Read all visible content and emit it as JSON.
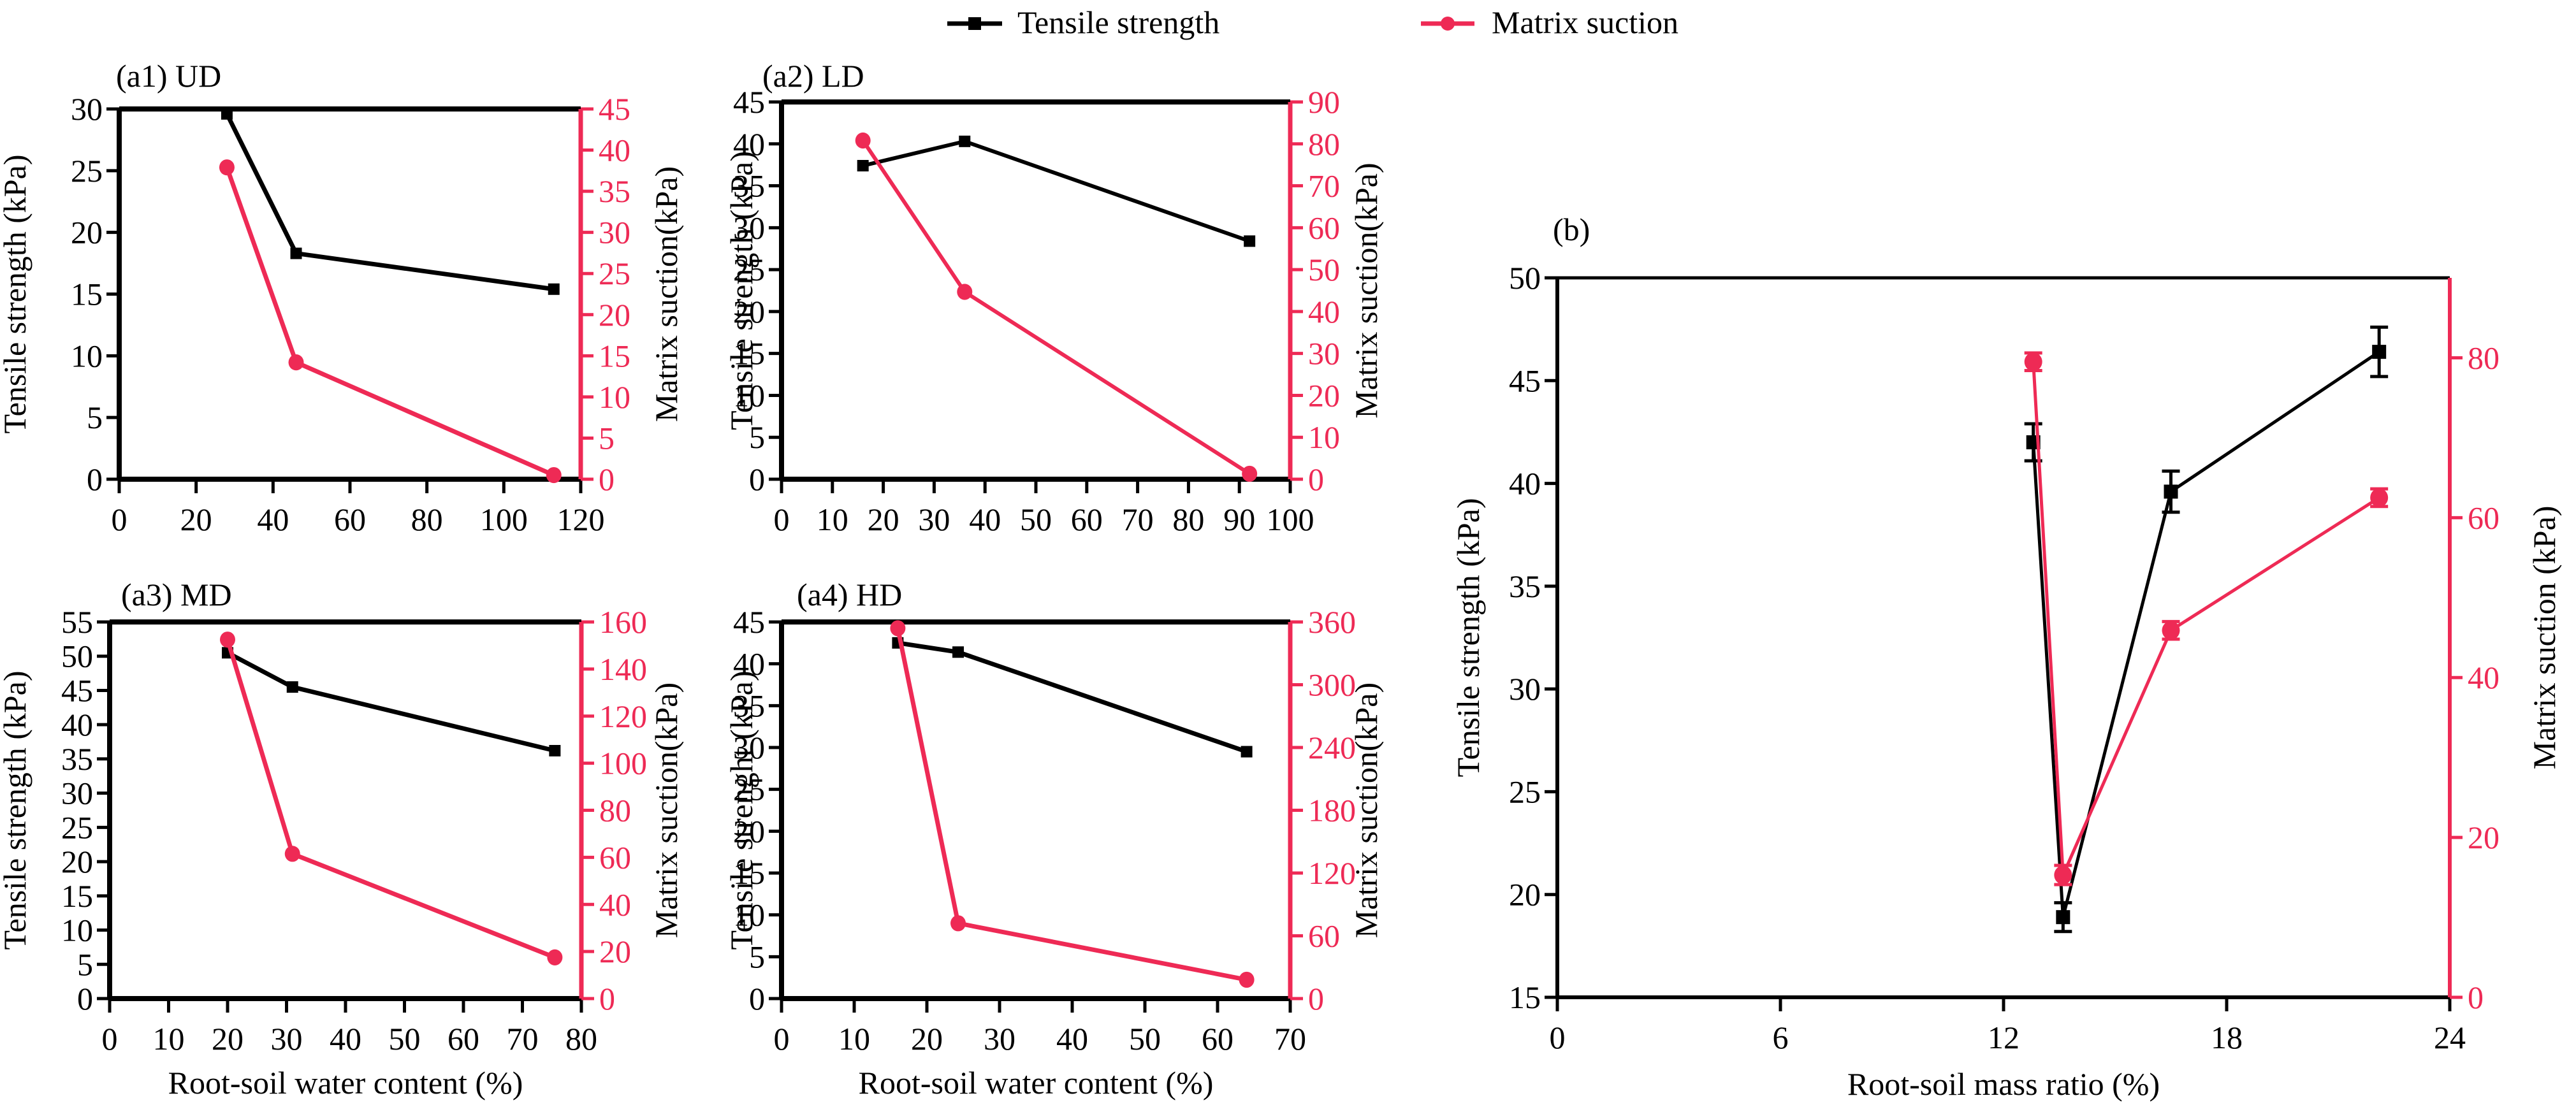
{
  "legend": {
    "position": "top-center",
    "items": [
      {
        "label": "Tensile strength",
        "color": "#000000",
        "marker": "square"
      },
      {
        "label": "Matrix suction",
        "color": "#ee2a55",
        "marker": "circle"
      }
    ]
  },
  "colors": {
    "tensile": "#000000",
    "suction": "#ee2a55"
  },
  "chart_data": [
    {
      "id": "a1",
      "type": "line",
      "title": "(a1) UD",
      "xlabel": "",
      "ylabel": "Tensile strength (kPa)",
      "y2label": "Matrix suction(kPa)",
      "xlim": [
        0,
        120
      ],
      "xticks": [
        0,
        20,
        40,
        60,
        80,
        100,
        120
      ],
      "ylim": [
        0,
        30
      ],
      "yticks": [
        0,
        5,
        10,
        15,
        20,
        25,
        30
      ],
      "y2lim": [
        0,
        45
      ],
      "y2ticks": [
        0,
        5,
        10,
        15,
        20,
        25,
        30,
        35,
        40,
        45
      ],
      "grid": false,
      "series": [
        {
          "name": "Tensile strength",
          "axis": "left",
          "x": [
            28,
            46,
            113
          ],
          "y": [
            29.6,
            18.3,
            15.4
          ]
        },
        {
          "name": "Matrix suction",
          "axis": "right",
          "x": [
            28,
            46,
            113
          ],
          "y": [
            37.9,
            14.2,
            0.5
          ]
        }
      ]
    },
    {
      "id": "a2",
      "type": "line",
      "title": "(a2) LD",
      "xlabel": "",
      "ylabel": "Tensile strength (kPa)",
      "y2label": "Matrix suction(kPa)",
      "xlim": [
        0,
        100
      ],
      "xticks": [
        0,
        10,
        20,
        30,
        40,
        50,
        60,
        70,
        80,
        90,
        100
      ],
      "ylim": [
        0,
        45
      ],
      "yticks": [
        0,
        5,
        10,
        15,
        20,
        25,
        30,
        35,
        40,
        45
      ],
      "y2lim": [
        0,
        90
      ],
      "y2ticks": [
        0,
        10,
        20,
        30,
        40,
        50,
        60,
        70,
        80,
        90
      ],
      "grid": false,
      "series": [
        {
          "name": "Tensile strength",
          "axis": "left",
          "x": [
            16,
            36,
            92
          ],
          "y": [
            37.4,
            40.3,
            28.4
          ]
        },
        {
          "name": "Matrix suction",
          "axis": "right",
          "x": [
            16,
            36,
            92
          ],
          "y": [
            80.8,
            44.7,
            1.3
          ]
        }
      ]
    },
    {
      "id": "a3",
      "type": "line",
      "title": "(a3) MD",
      "xlabel": "Root-soil water content (%)",
      "ylabel": "Tensile strength (kPa)",
      "y2label": "Matrix suction(kPa)",
      "xlim": [
        0,
        80
      ],
      "xticks": [
        0,
        10,
        20,
        30,
        40,
        50,
        60,
        70,
        80
      ],
      "ylim": [
        0,
        55
      ],
      "yticks": [
        0,
        5,
        10,
        15,
        20,
        25,
        30,
        35,
        40,
        45,
        50,
        55
      ],
      "y2lim": [
        0,
        160
      ],
      "y2ticks": [
        0,
        20,
        40,
        60,
        80,
        100,
        120,
        140,
        160
      ],
      "grid": false,
      "series": [
        {
          "name": "Tensile strength",
          "axis": "left",
          "x": [
            20,
            31,
            75.5
          ],
          "y": [
            50.5,
            45.5,
            36.2
          ]
        },
        {
          "name": "Matrix suction",
          "axis": "right",
          "x": [
            20,
            31,
            75.5
          ],
          "y": [
            152.5,
            61.5,
            17.5
          ]
        }
      ]
    },
    {
      "id": "a4",
      "type": "line",
      "title": "(a4) HD",
      "xlabel": "Root-soil water content (%)",
      "ylabel": "Tensile strenght (kPa)",
      "y2label": "Matrix suction(kPa)",
      "xlim": [
        0,
        70
      ],
      "xticks": [
        0,
        10,
        20,
        30,
        40,
        50,
        60,
        70
      ],
      "ylim": [
        0,
        45
      ],
      "yticks": [
        0,
        5,
        10,
        15,
        20,
        25,
        30,
        35,
        40,
        45
      ],
      "y2lim": [
        0,
        360
      ],
      "y2ticks": [
        0,
        60,
        120,
        180,
        240,
        300,
        360
      ],
      "grid": false,
      "series": [
        {
          "name": "Tensile strength",
          "axis": "left",
          "x": [
            16,
            24.3,
            64
          ],
          "y": [
            42.5,
            41.4,
            29.5
          ]
        },
        {
          "name": "Matrix suction",
          "axis": "right",
          "x": [
            16,
            24.3,
            64
          ],
          "y": [
            354,
            72,
            18
          ]
        }
      ]
    },
    {
      "id": "b",
      "type": "line",
      "title": "(b)",
      "xlabel": "Root-soil mass ratio (%)",
      "ylabel": "Tensile strength (kPa)",
      "y2label": "Matrix suction (kPa)",
      "xlim": [
        0,
        24
      ],
      "xticks": [
        0,
        6,
        12,
        18,
        24
      ],
      "ylim": [
        15,
        50
      ],
      "yticks": [
        15,
        20,
        25,
        30,
        35,
        40,
        45,
        50
      ],
      "y2lim": [
        0,
        90
      ],
      "y2ticks": [
        0,
        20,
        40,
        60,
        80
      ],
      "grid": false,
      "series": [
        {
          "name": "Tensile strength",
          "axis": "left",
          "x": [
            12.8,
            13.6,
            16.5,
            22.1
          ],
          "y": [
            42.0,
            18.9,
            39.6,
            46.4
          ],
          "err": [
            0.9,
            0.7,
            1.0,
            1.2
          ]
        },
        {
          "name": "Matrix suction",
          "axis": "right",
          "x": [
            12.8,
            13.6,
            16.5,
            22.1
          ],
          "y": [
            79.5,
            15.3,
            45.9,
            62.5
          ],
          "err": [
            1.1,
            1.2,
            1.1,
            1.1
          ]
        }
      ]
    }
  ]
}
